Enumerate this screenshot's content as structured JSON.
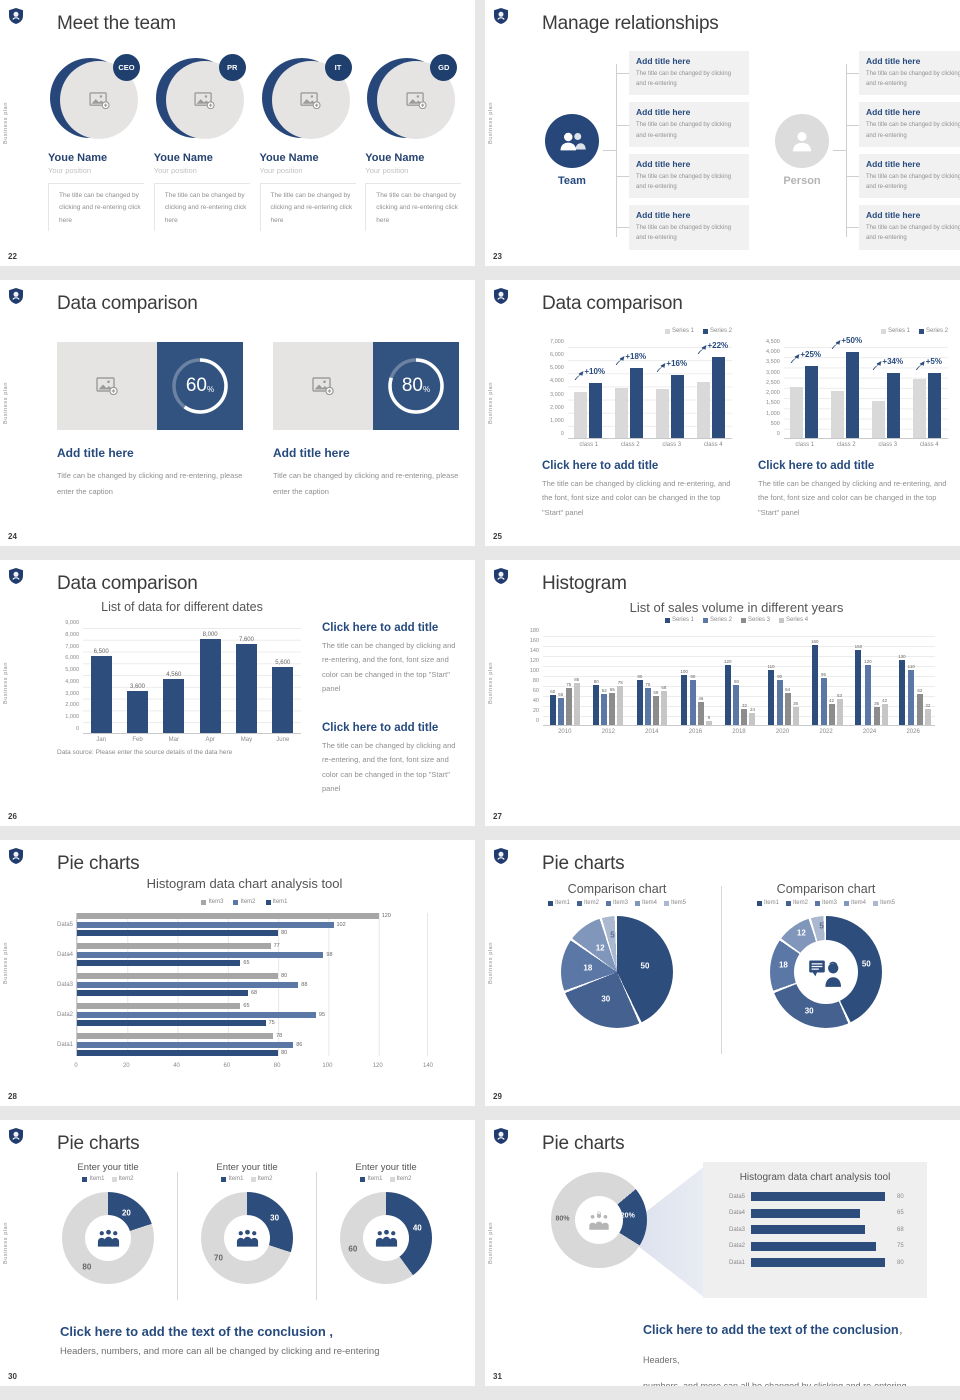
{
  "brand": {
    "vertical_label": "Business plan"
  },
  "colors": {
    "primary": "#2d4d7c",
    "medium": "#5b77a5",
    "gray_bar": "#d9d9d9",
    "gray_mid": "#a6a6a6",
    "gray_dark": "#8c8c8c",
    "gray_pale": "#c6c6c6"
  },
  "slides": {
    "s22": {
      "number": "22",
      "title": "Meet the team",
      "members": [
        {
          "badge": "CEO",
          "name": "Youe Name",
          "position": "Your position",
          "desc": "The title can be changed by clicking and re-entering click here"
        },
        {
          "badge": "PR",
          "name": "Youe Name",
          "position": "Your position",
          "desc": "The title can be changed by clicking and re-entering click here"
        },
        {
          "badge": "IT",
          "name": "Youe Name",
          "position": "Your position",
          "desc": "The title can be changed by clicking and re-entering click here"
        },
        {
          "badge": "GD",
          "name": "Youe Name",
          "position": "Your position",
          "desc": "The title can be changed by clicking and re-entering click here"
        }
      ]
    },
    "s23": {
      "number": "23",
      "title": "Manage relationships",
      "team_label": "Team",
      "person_label": "Person",
      "box_title": "Add title here",
      "box_text": "The title can be changed by clicking and re-entering"
    },
    "s24": {
      "number": "24",
      "title": "Data comparison",
      "card_title": "Add title here",
      "card_caption": "Title can be changed by clicking and re-entering, please enter the caption",
      "cards": [
        {
          "percent": 60
        },
        {
          "percent": 80
        }
      ]
    },
    "s25": {
      "number": "25",
      "title": "Data comparison",
      "cap_title": "Click here to add title",
      "cap_text": "The title can be changed by clicking and re-entering, and the font, font size and color can be changed in the top \"Start\" panel",
      "charts": [
        {
          "type": "bar",
          "legend": [
            {
              "label": "Series 1",
              "color": "#d9d9d9"
            },
            {
              "label": "Series 2",
              "color": "#2d4d7c"
            }
          ],
          "ymax": 7000,
          "yticks": [
            "7,000",
            "6,000",
            "5,000",
            "4,000",
            "3,000",
            "2,000",
            "1,000",
            "0"
          ],
          "categories": [
            "class 1",
            "class 2",
            "class 3",
            "class 4"
          ],
          "series": [
            {
              "name": "Series 1",
              "color": "#d9d9d9",
              "values": [
                3500,
                3800,
                3700,
                4300
              ]
            },
            {
              "name": "Series 2",
              "color": "#2d4d7c",
              "values": [
                4200,
                5300,
                4800,
                6200
              ]
            }
          ],
          "deltas": [
            "+10%",
            "+18%",
            "+16%",
            "+22%"
          ]
        },
        {
          "type": "bar",
          "legend": [
            {
              "label": "Series 1",
              "color": "#d9d9d9"
            },
            {
              "label": "Series 2",
              "color": "#2d4d7c"
            }
          ],
          "ymax": 4500,
          "yticks": [
            "4,500",
            "4,000",
            "3,500",
            "3,000",
            "2,500",
            "2,000",
            "1,500",
            "1,000",
            "500",
            "0"
          ],
          "categories": [
            "class 1",
            "class 2",
            "class 3",
            "class 4"
          ],
          "series": [
            {
              "name": "Series 1",
              "color": "#d9d9d9",
              "values": [
                2500,
                2300,
                1800,
                2900
              ]
            },
            {
              "name": "Series 2",
              "color": "#2d4d7c",
              "values": [
                3500,
                4200,
                3200,
                3200
              ]
            }
          ],
          "deltas": [
            "+25%",
            "+50%",
            "+34%",
            "+5%"
          ]
        }
      ]
    },
    "s26": {
      "number": "26",
      "title": "Data comparison",
      "chart": {
        "type": "bar",
        "title": "List of data for different dates",
        "ymax": 9000,
        "yticks": [
          "9,000",
          "8,000",
          "7,000",
          "6,000",
          "5,000",
          "4,000",
          "3,000",
          "2,000",
          "1,000",
          "0"
        ],
        "categories": [
          "Jan",
          "Feb",
          "Mar",
          "Apr",
          "May",
          "June"
        ],
        "series": [
          {
            "name": "data",
            "color": "#2d4d7c",
            "values": [
              6500,
              3600,
              4560,
              8000,
              7600,
              5600
            ],
            "labels": [
              "6,500",
              "3,600",
              "4,560",
              "8,000",
              "7,600",
              "5,600"
            ]
          }
        ],
        "source": "Data source: Please enter the source details of the data here"
      },
      "cap_title": "Click here to add title",
      "cap_text": "The title can be changed by clicking and re-entering, and the font, font size and color can be changed in the top \"Start\" panel"
    },
    "s27": {
      "number": "27",
      "title": "Histogram",
      "chart": {
        "type": "bar",
        "title": "List of sales volume in different years",
        "legend": [
          {
            "label": "Series 1",
            "color": "#2d4d7c"
          },
          {
            "label": "Series 2",
            "color": "#5b77a5"
          },
          {
            "label": "Series 3",
            "color": "#8c8c8c"
          },
          {
            "label": "Series 4",
            "color": "#c6c6c6"
          }
        ],
        "ymax": 180,
        "yticks": [
          "180",
          "160",
          "140",
          "120",
          "100",
          "80",
          "60",
          "40",
          "20",
          "0"
        ],
        "categories": [
          "2010",
          "2012",
          "2014",
          "2016",
          "2018",
          "2020",
          "2022",
          "2024",
          "2026"
        ],
        "series": [
          {
            "name": "Series 1",
            "color": "#2d4d7c",
            "values": [
              60,
              80,
              90,
              100,
              120,
              110,
              160,
              150,
              130
            ],
            "labels": [
              "60",
              "80",
              "90",
              "100",
              "120",
              "110",
              "160",
              "150",
              "130"
            ]
          },
          {
            "name": "Series 2",
            "color": "#5b77a5",
            "values": [
              55,
              62,
              75,
              90,
              80,
              90,
              95,
              120,
              110
            ],
            "labels": [
              "55",
              "62",
              "75",
              "90",
              "80",
              "90",
              "95",
              "120",
              "110"
            ]
          },
          {
            "name": "Series 3",
            "color": "#8c8c8c",
            "values": [
              75,
              65,
              58,
              46,
              32,
              64,
              42,
              36,
              62
            ],
            "labels": [
              "75",
              "65",
              "58",
              "46",
              "32",
              "64",
              "42",
              "36",
              "62"
            ]
          },
          {
            "name": "Series 4",
            "color": "#c6c6c6",
            "values": [
              85,
              78,
              68,
              9,
              24,
              36,
              53,
              42,
              32
            ],
            "labels": [
              "85",
              "78",
              "68",
              "9",
              "24",
              "36",
              "53",
              "42",
              "32"
            ]
          }
        ]
      }
    },
    "s28": {
      "number": "28",
      "title": "Pie charts",
      "chart": {
        "type": "hbar",
        "title": "Histogram data chart analysis tool",
        "legend": [
          {
            "label": "Item3",
            "color": "#a6a6a6"
          },
          {
            "label": "Item2",
            "color": "#5b77a5"
          },
          {
            "label": "Item1",
            "color": "#2d4d7c"
          }
        ],
        "xmax": 140,
        "xticks": [
          "0",
          "20",
          "40",
          "60",
          "80",
          "100",
          "120",
          "140"
        ],
        "groups": [
          {
            "category": "Data5",
            "bars": [
              {
                "name": "Item3",
                "color": "#a6a6a6",
                "value": 120
              },
              {
                "name": "Item2",
                "color": "#5b77a5",
                "value": 102
              },
              {
                "name": "Item1",
                "color": "#2d4d7c",
                "value": 80
              }
            ]
          },
          {
            "category": "Data4",
            "bars": [
              {
                "name": "Item3",
                "color": "#a6a6a6",
                "value": 77
              },
              {
                "name": "Item2",
                "color": "#5b77a5",
                "value": 98
              },
              {
                "name": "Item1",
                "color": "#2d4d7c",
                "value": 65
              }
            ]
          },
          {
            "category": "Data3",
            "bars": [
              {
                "name": "Item3",
                "color": "#a6a6a6",
                "value": 80
              },
              {
                "name": "Item2",
                "color": "#5b77a5",
                "value": 88
              },
              {
                "name": "Item1",
                "color": "#2d4d7c",
                "value": 68
              }
            ]
          },
          {
            "category": "Data2",
            "bars": [
              {
                "name": "Item3",
                "color": "#a6a6a6",
                "value": 65
              },
              {
                "name": "Item2",
                "color": "#5b77a5",
                "value": 95
              },
              {
                "name": "Item1",
                "color": "#2d4d7c",
                "value": 75
              }
            ]
          },
          {
            "category": "Data1",
            "bars": [
              {
                "name": "Item3",
                "color": "#a6a6a6",
                "value": 78
              },
              {
                "name": "Item2",
                "color": "#5b77a5",
                "value": 86
              },
              {
                "name": "Item1",
                "color": "#2d4d7c",
                "value": 80
              }
            ]
          }
        ]
      }
    },
    "s29": {
      "number": "29",
      "title": "Pie charts",
      "chart_title": "Comparison chart",
      "legend": [
        {
          "label": "Item1",
          "color": "#2d4d7c"
        },
        {
          "label": "Item2",
          "color": "#44618f"
        },
        {
          "label": "Item3",
          "color": "#5b77a5"
        },
        {
          "label": "Item4",
          "color": "#8096ba"
        },
        {
          "label": "Item5",
          "color": "#aab8d0"
        }
      ],
      "values": [
        50,
        30,
        18,
        12,
        5
      ],
      "pie": {
        "values": [
          50,
          30,
          18,
          12,
          5
        ],
        "colors": [
          "#2d4d7c",
          "#44618f",
          "#5b77a5",
          "#8096ba",
          "#aab8d0"
        ],
        "gaps": true
      }
    },
    "s30": {
      "number": "30",
      "title": "Pie charts",
      "chart_title": "Enter your title",
      "legend": [
        {
          "label": "Item1",
          "color": "#2d4d7c"
        },
        {
          "label": "Item2",
          "color": "#d9d9d9"
        }
      ],
      "charts": [
        {
          "item1": 20,
          "item2": 80,
          "pie": {
            "values": [
              20,
              80
            ],
            "colors": [
              "#2d4d7c",
              "#d9d9d9"
            ]
          }
        },
        {
          "item1": 30,
          "item2": 70,
          "pie": {
            "values": [
              30,
              70
            ],
            "colors": [
              "#2d4d7c",
              "#d9d9d9"
            ]
          }
        },
        {
          "item1": 40,
          "item2": 60,
          "pie": {
            "values": [
              40,
              60
            ],
            "colors": [
              "#2d4d7c",
              "#d9d9d9"
            ]
          }
        }
      ],
      "concl_bold": "Click here to add the text of the conclusion ,",
      "concl_text": "Headers, numbers, and more can all be changed by clicking and re-entering"
    },
    "s31": {
      "number": "31",
      "title": "Pie charts",
      "donut": {
        "values": [
          20,
          80
        ],
        "colors": [
          "#2d4d7c",
          "#d8d8d8"
        ],
        "from": 50,
        "labels": [
          "20%",
          "80%"
        ]
      },
      "panel": {
        "title": "Histogram data chart analysis tool",
        "xmax": 85,
        "categories": [
          "Data5",
          "Data4",
          "Data3",
          "Data2",
          "Data1"
        ],
        "values": [
          80,
          65,
          68,
          75,
          80
        ]
      },
      "concl_bold": "Click here to add the text of the conclusion",
      "concl_tail": "， Headers,",
      "concl_text": "numbers, and more can all be changed by clicking and re-entering"
    }
  }
}
